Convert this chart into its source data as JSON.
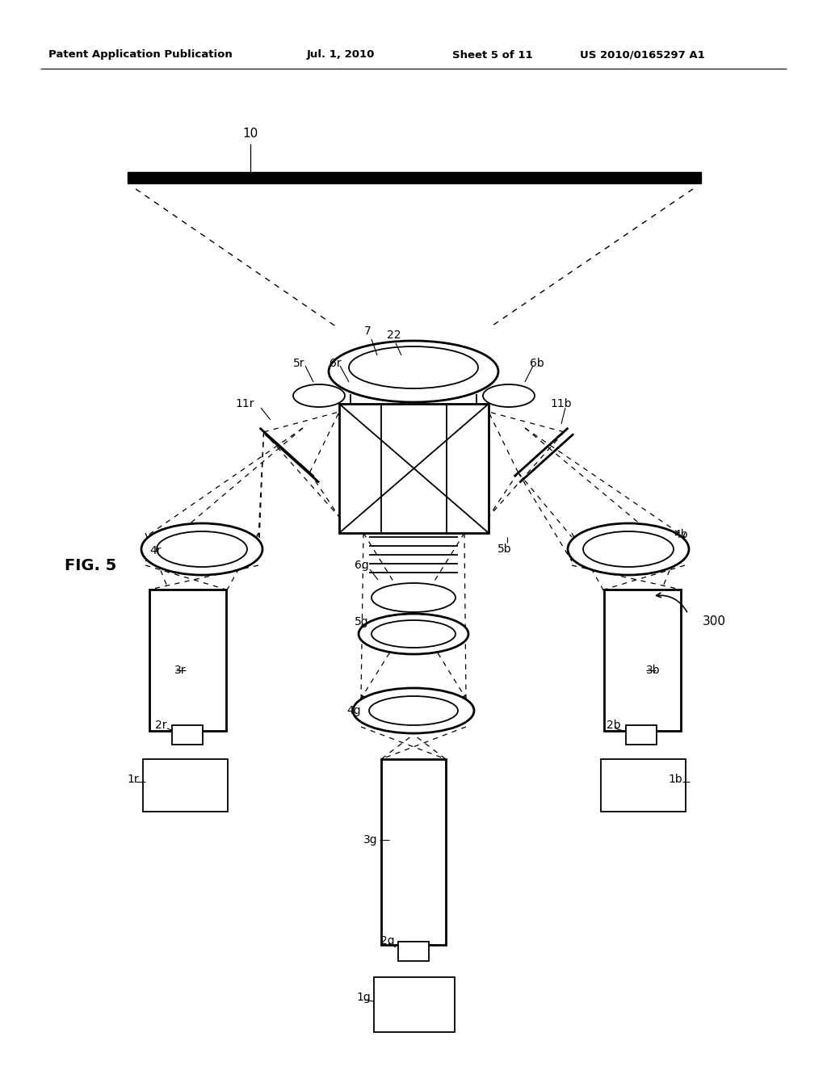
{
  "background_color": "#ffffff",
  "header_text": "Patent Application Publication",
  "header_date": "Jul. 1, 2010",
  "header_sheet": "Sheet 5 of 11",
  "header_patent": "US 2010/0165297 A1",
  "fig_label": "FIG. 5",
  "ref_300": "300"
}
